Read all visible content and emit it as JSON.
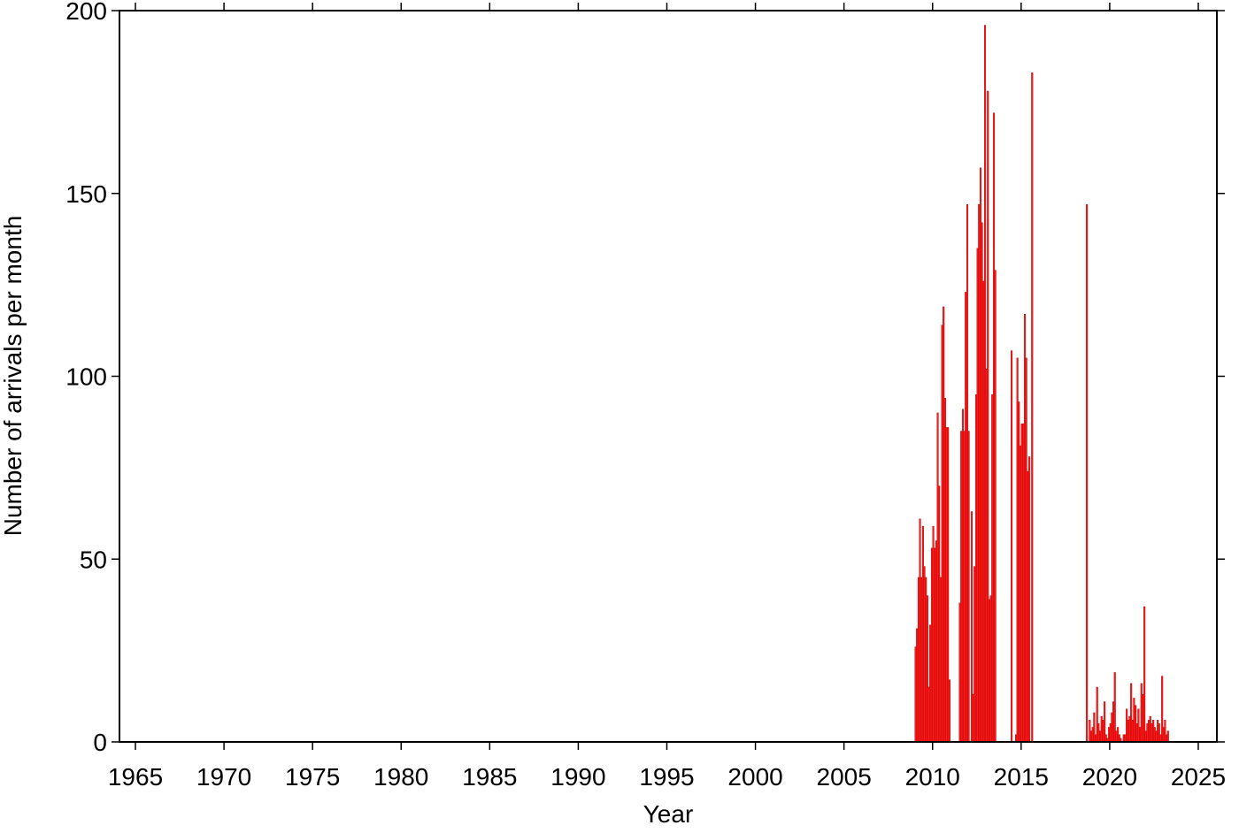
{
  "chart_data": {
    "type": "bar",
    "x_label": "Year",
    "y_label": "Number of arrivals per month",
    "color": "#ff1a1a",
    "xlim": [
      1964.1,
      2026.05
    ],
    "ylim": [
      0,
      200
    ],
    "xticks": [
      1965,
      1970,
      1975,
      1980,
      1985,
      1990,
      1995,
      2000,
      2005,
      2010,
      2015,
      2020,
      2025
    ],
    "yticks": [
      0,
      50,
      100,
      150,
      200
    ],
    "x": [
      2009.0,
      2009.08,
      2009.17,
      2009.25,
      2009.33,
      2009.42,
      2009.5,
      2009.58,
      2009.67,
      2009.75,
      2009.83,
      2009.92,
      2010.0,
      2010.08,
      2010.17,
      2010.25,
      2010.33,
      2010.42,
      2010.5,
      2010.58,
      2010.67,
      2010.75,
      2010.83,
      2010.92,
      2011.0,
      2011.08,
      2011.17,
      2011.25,
      2011.33,
      2011.42,
      2011.5,
      2011.58,
      2011.67,
      2011.75,
      2011.83,
      2011.92,
      2012.0,
      2012.08,
      2012.17,
      2012.25,
      2012.33,
      2012.42,
      2012.5,
      2012.58,
      2012.67,
      2012.75,
      2012.83,
      2012.92,
      2013.0,
      2013.08,
      2013.17,
      2013.25,
      2013.33,
      2013.42,
      2013.5,
      2013.58,
      2013.67,
      2013.75,
      2013.83,
      2013.92,
      2014.0,
      2014.08,
      2014.17,
      2014.25,
      2014.33,
      2014.42,
      2014.5,
      2014.58,
      2014.67,
      2014.75,
      2014.83,
      2014.92,
      2015.0,
      2015.08,
      2015.17,
      2015.25,
      2015.33,
      2015.42,
      2015.5,
      2015.58,
      2018.67,
      2018.75,
      2018.83,
      2018.92,
      2019.0,
      2019.08,
      2019.17,
      2019.25,
      2019.33,
      2019.42,
      2019.5,
      2019.58,
      2019.67,
      2019.75,
      2019.83,
      2019.92,
      2020.0,
      2020.08,
      2020.17,
      2020.25,
      2020.33,
      2020.42,
      2020.5,
      2020.58,
      2020.67,
      2020.75,
      2020.83,
      2020.92,
      2021.0,
      2021.08,
      2021.17,
      2021.25,
      2021.33,
      2021.42,
      2021.5,
      2021.58,
      2021.67,
      2021.75,
      2021.83,
      2021.92,
      2022.0,
      2022.08,
      2022.17,
      2022.25,
      2022.33,
      2022.42,
      2022.5,
      2022.58,
      2022.67,
      2022.75,
      2022.83,
      2022.92,
      2023.0,
      2023.08,
      2023.17,
      2023.25
    ],
    "values": [
      26,
      31,
      45,
      61,
      45,
      59,
      48,
      45,
      40,
      15,
      32,
      53,
      59,
      53,
      55,
      90,
      70,
      45,
      114,
      119,
      94,
      86,
      86,
      17,
      0,
      0,
      0,
      0,
      0,
      0,
      38,
      85,
      91,
      85,
      123,
      147,
      85,
      0,
      63,
      13,
      48,
      95,
      135,
      147,
      157,
      142,
      126,
      196,
      102,
      178,
      39,
      40,
      95,
      172,
      129,
      0,
      0,
      0,
      0,
      0,
      0,
      0,
      0,
      0,
      0,
      107,
      0,
      0,
      2,
      105,
      93,
      81,
      87,
      87,
      117,
      105,
      74,
      78,
      0,
      183,
      147,
      0,
      6,
      3,
      4,
      8,
      2,
      15,
      5,
      3,
      7,
      6,
      11,
      2,
      1,
      4,
      5,
      8,
      11,
      19,
      3,
      4,
      2,
      1,
      0,
      2,
      2,
      9,
      6,
      7,
      16,
      6,
      12,
      10,
      5,
      9,
      4,
      16,
      13,
      37,
      3,
      5,
      6,
      7,
      5,
      6,
      4,
      3,
      6,
      5,
      2,
      18,
      4,
      6,
      2,
      3
    ]
  }
}
